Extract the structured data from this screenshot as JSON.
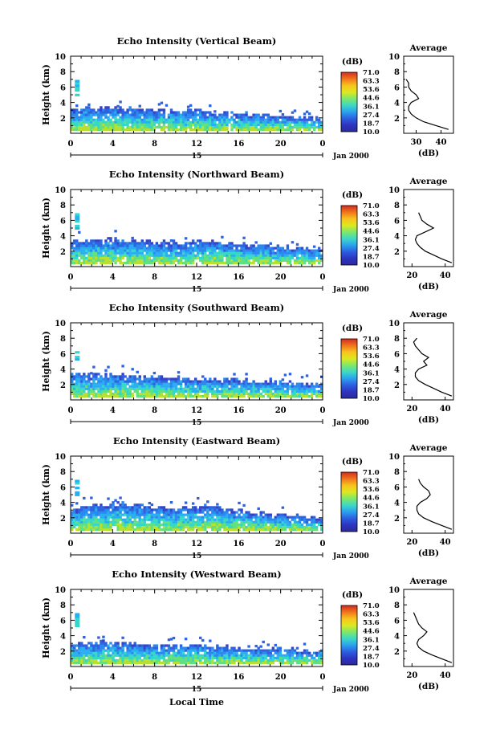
{
  "colorbar": {
    "unit": "(dB)",
    "labels": [
      "71.0",
      "63.3",
      "53.6",
      "44.6",
      "36.1",
      "27.4",
      "18.7",
      "10.0"
    ],
    "stops": [
      "#d42a1e",
      "#f0741c",
      "#f9c21e",
      "#dde820",
      "#7ee86a",
      "#3ed8c6",
      "#2aa2ee",
      "#2d5ee0",
      "#2e34c0",
      "#2a2a9a"
    ]
  },
  "shared": {
    "ylabel": "Height (km)",
    "xticks": [
      "0",
      "4",
      "8",
      "12",
      "16",
      "20",
      "0"
    ],
    "date_label": "15",
    "date_suffix": "Jan 2000",
    "xlabel": "Local Time",
    "avg_title": "Average",
    "avg_xlabel": "(dB)"
  },
  "chart_data": [
    {
      "type": "heatmap",
      "title": "Echo Intensity (Vertical Beam)",
      "ylabel": "Height (km)",
      "ylim": [
        0,
        10
      ],
      "xlim": [
        0,
        24
      ],
      "yticks": [
        "2",
        "4",
        "6",
        "8",
        "10"
      ],
      "echo_top_km": [
        3.1,
        3.0,
        3.2,
        3.3,
        3.2,
        3.0,
        3.1,
        2.9,
        2.8,
        2.8,
        2.7,
        2.8,
        2.9,
        2.7,
        2.6,
        2.5,
        2.4,
        2.3,
        2.3,
        2.2,
        2.1,
        2.0,
        1.9,
        1.8,
        1.8
      ],
      "average_profile": {
        "xticks": [
          "30",
          "40"
        ],
        "xlim": [
          25,
          45
        ],
        "height_km": [
          0.5,
          1.0,
          1.5,
          2.0,
          2.5,
          3.0,
          3.5,
          4.0,
          4.5,
          5.0,
          5.5,
          6.0,
          6.5,
          7.0
        ],
        "db": [
          43,
          38,
          33,
          30,
          28,
          27,
          27,
          28,
          31,
          30,
          28,
          27,
          27,
          26
        ]
      }
    },
    {
      "type": "heatmap",
      "title": "Echo Intensity (Northward Beam)",
      "ylabel": "Height (km)",
      "ylim": [
        0,
        10
      ],
      "xlim": [
        0,
        24
      ],
      "yticks": [
        "2",
        "4",
        "6",
        "8",
        "10"
      ],
      "echo_top_km": [
        3.2,
        3.2,
        3.3,
        3.4,
        3.4,
        3.3,
        3.2,
        3.1,
        3.0,
        3.0,
        3.0,
        3.1,
        3.2,
        3.1,
        3.0,
        2.9,
        2.8,
        2.7,
        2.6,
        2.5,
        2.4,
        2.3,
        2.2,
        2.1,
        2.0
      ],
      "average_profile": {
        "xticks": [
          "20",
          "40"
        ],
        "xlim": [
          15,
          45
        ],
        "height_km": [
          0.5,
          1.0,
          1.5,
          2.0,
          2.5,
          3.0,
          3.5,
          4.0,
          4.5,
          5.0,
          5.5,
          6.0,
          6.5,
          7.0
        ],
        "db": [
          44,
          38,
          33,
          28,
          25,
          23,
          22,
          23,
          28,
          33,
          29,
          26,
          25,
          24
        ]
      }
    },
    {
      "type": "heatmap",
      "title": "Echo Intensity (Southward Beam)",
      "ylabel": "Height (km)",
      "ylim": [
        0,
        10
      ],
      "xlim": [
        0,
        24
      ],
      "yticks": [
        "2",
        "4",
        "6",
        "8",
        "10"
      ],
      "echo_top_km": [
        3.4,
        3.3,
        3.2,
        3.1,
        3.2,
        3.1,
        3.0,
        3.0,
        2.9,
        2.8,
        2.8,
        2.7,
        2.6,
        2.6,
        2.6,
        2.5,
        2.5,
        2.4,
        2.3,
        2.3,
        2.2,
        2.1,
        2.0,
        2.0,
        1.9
      ],
      "average_profile": {
        "xticks": [
          "20",
          "40"
        ],
        "xlim": [
          15,
          45
        ],
        "height_km": [
          0.5,
          1.0,
          1.5,
          2.0,
          2.5,
          3.0,
          3.5,
          4.0,
          4.5,
          5.0,
          5.5,
          6.0,
          6.5,
          7.0,
          7.5,
          8.0
        ],
        "db": [
          44,
          38,
          33,
          28,
          24,
          22,
          22,
          24,
          29,
          27,
          30,
          26,
          24,
          22,
          21,
          23
        ]
      }
    },
    {
      "type": "heatmap",
      "title": "Echo Intensity (Eastward Beam)",
      "ylabel": "Height (km)",
      "ylim": [
        0,
        10
      ],
      "xlim": [
        0,
        24
      ],
      "yticks": [
        "2",
        "4",
        "6",
        "8",
        "10"
      ],
      "echo_top_km": [
        3.0,
        3.2,
        3.4,
        3.5,
        3.6,
        3.7,
        3.6,
        3.4,
        3.2,
        3.1,
        3.0,
        3.2,
        3.4,
        3.5,
        3.3,
        3.0,
        2.8,
        2.6,
        2.4,
        2.3,
        2.2,
        2.1,
        2.0,
        1.9,
        1.8
      ],
      "average_profile": {
        "xticks": [
          "20",
          "40"
        ],
        "xlim": [
          15,
          45
        ],
        "height_km": [
          0.5,
          1.0,
          1.5,
          2.0,
          2.5,
          3.0,
          3.5,
          4.0,
          4.5,
          5.0,
          5.5,
          6.0,
          6.5,
          7.0
        ],
        "db": [
          44,
          38,
          32,
          27,
          24,
          23,
          23,
          25,
          29,
          31,
          30,
          27,
          25,
          24
        ]
      }
    },
    {
      "type": "heatmap",
      "title": "Echo Intensity (Westward Beam)",
      "ylabel": "Height (km)",
      "ylim": [
        0,
        10
      ],
      "xlim": [
        0,
        24
      ],
      "yticks": [
        "2",
        "4",
        "6",
        "8",
        "10"
      ],
      "echo_top_km": [
        2.9,
        2.8,
        2.9,
        3.0,
        3.0,
        2.9,
        2.8,
        2.7,
        2.6,
        2.6,
        2.5,
        2.5,
        2.6,
        2.5,
        2.4,
        2.4,
        2.3,
        2.2,
        2.2,
        2.1,
        2.0,
        2.0,
        1.9,
        1.8,
        1.8
      ],
      "average_profile": {
        "xticks": [
          "20",
          "40"
        ],
        "xlim": [
          15,
          45
        ],
        "height_km": [
          0.5,
          1.0,
          1.5,
          2.0,
          2.5,
          3.0,
          3.5,
          4.0,
          4.5,
          5.0,
          5.5,
          6.0,
          6.5,
          7.0
        ],
        "db": [
          44,
          38,
          32,
          27,
          24,
          23,
          24,
          27,
          29,
          26,
          24,
          23,
          22,
          21
        ]
      }
    }
  ]
}
